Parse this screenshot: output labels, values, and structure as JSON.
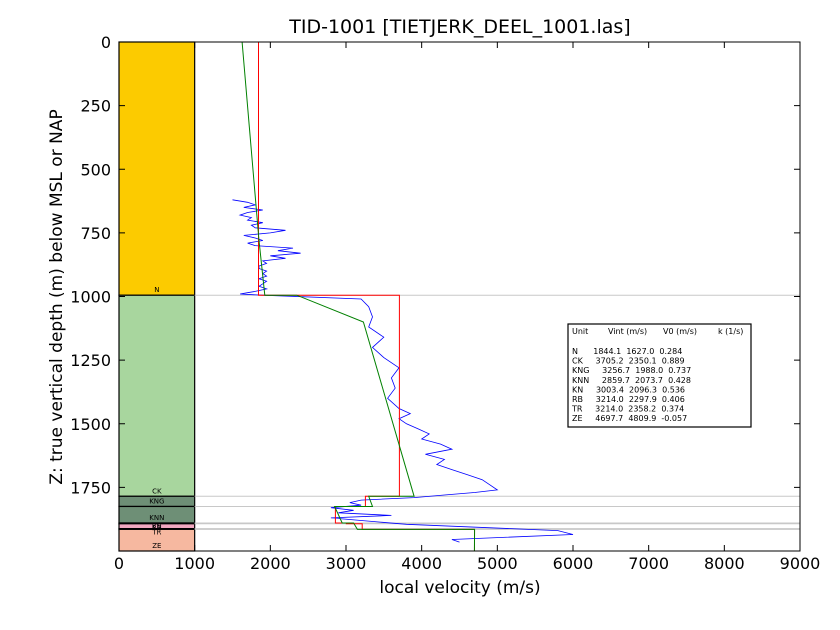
{
  "chart_data": {
    "type": "line",
    "title": "TID-1001 [TIETJERK_DEEL_1001.las]",
    "xlabel": "local velocity (m/s)",
    "ylabel": "Z: true vertical depth (m) below MSL or NAP",
    "xlim": [
      0,
      9000
    ],
    "ylim": [
      2000,
      0
    ],
    "x_ticks": [
      "0",
      "1000",
      "2000",
      "3000",
      "4000",
      "5000",
      "6000",
      "7000",
      "8000",
      "9000"
    ],
    "y_ticks": [
      "0",
      "250",
      "500",
      "750",
      "1000",
      "1250",
      "1500",
      "1750"
    ],
    "units": [
      {
        "name": "N",
        "top": 0,
        "bottom": 995,
        "color": "#fccb00",
        "vint": 1844.1,
        "v0": 1627.0,
        "k": 0.284
      },
      {
        "name": "CK",
        "top": 995,
        "bottom": 1785,
        "color": "#a8d69e",
        "vint": 3705.2,
        "v0": 2350.1,
        "k": 0.889
      },
      {
        "name": "KNG",
        "top": 1785,
        "bottom": 1825,
        "color": "#6e8f76",
        "vint": 3256.7,
        "v0": 1988.0,
        "k": 0.737
      },
      {
        "name": "KNN",
        "top": 1825,
        "bottom": 1890,
        "color": "#6e8f76",
        "vint": 2859.7,
        "v0": 2073.7,
        "k": 0.428
      },
      {
        "name": "KN",
        "top": 1890,
        "bottom": 1893,
        "color": "#6e8f76",
        "vint": 3003.4,
        "v0": 2096.3,
        "k": 0.536
      },
      {
        "name": "RB",
        "top": 1893,
        "bottom": 1912,
        "color": "#f1a8c0",
        "vint": 3214.0,
        "v0": 2297.9,
        "k": 0.406
      },
      {
        "name": "TR",
        "top": 1912,
        "bottom": 1915,
        "color": "#f1a8c0",
        "vint": 3214.0,
        "v0": 2358.2,
        "k": 0.374
      },
      {
        "name": "ZE",
        "top": 1915,
        "bottom": 2000,
        "color": "#f6b8a0",
        "vint": 4697.7,
        "v0": 4809.9,
        "k": -0.057
      }
    ],
    "legend": {
      "placement": "right",
      "header": [
        "Unit",
        "Vint (m/s)",
        "V0 (m/s)",
        "k (1/s)"
      ],
      "rows": [
        "N      1844.1  1627.0  0.284",
        "CK     3705.2  2350.1  0.889",
        "KNG     3256.7  1988.0  0.737",
        "KNN     2859.7  2073.7  0.428",
        "KN     3003.4  2096.3  0.536",
        "RB     3214.0  2297.9  0.406",
        "TR     3214.0  2358.2  0.374",
        "ZE     4697.7  4809.9  -0.057"
      ]
    },
    "series": [
      {
        "name": "",
        "color": "#0000ff",
        "style": "log",
        "x": [
          1500,
          1700,
          1800,
          1650,
          1900,
          1700,
          1600,
          1750,
          1700,
          1900,
          1750,
          1800,
          2200,
          2000,
          1650,
          1800,
          1900,
          1700,
          1800,
          2300,
          2100,
          2400,
          2000,
          2200,
          1900,
          1950,
          1850,
          1850,
          1950,
          1900,
          1950,
          1850,
          1950,
          1900,
          1850,
          1950,
          1800,
          1700,
          1600,
          1900,
          3200,
          3300,
          3350,
          3300,
          3500,
          3350,
          3500,
          3700,
          3600,
          3650,
          3550,
          3700,
          3850,
          3700,
          3800,
          3950,
          4100,
          4000,
          4250,
          4400,
          4050,
          4300,
          4200,
          4400,
          4600,
          4800,
          4900,
          5000,
          4700,
          4300,
          3900,
          3200,
          3050,
          3200,
          2800,
          3100,
          2900,
          3600,
          2800,
          3200,
          3800,
          5800,
          6000,
          4400,
          4500
        ],
        "y": [
          620,
          630,
          640,
          650,
          660,
          670,
          680,
          690,
          700,
          710,
          720,
          730,
          740,
          750,
          760,
          770,
          780,
          790,
          800,
          810,
          820,
          830,
          840,
          850,
          860,
          870,
          880,
          890,
          900,
          910,
          920,
          930,
          940,
          950,
          960,
          970,
          980,
          985,
          990,
          995,
          1010,
          1040,
          1080,
          1120,
          1160,
          1200,
          1240,
          1280,
          1320,
          1360,
          1400,
          1440,
          1460,
          1480,
          1500,
          1520,
          1540,
          1560,
          1580,
          1600,
          1620,
          1640,
          1660,
          1680,
          1700,
          1720,
          1740,
          1760,
          1770,
          1780,
          1790,
          1800,
          1810,
          1820,
          1830,
          1840,
          1850,
          1860,
          1870,
          1880,
          1895,
          1920,
          1935,
          1955,
          1965
        ]
      },
      {
        "name": "",
        "color": "#ff0000",
        "style": "step",
        "x": [
          1844.1,
          1844.1,
          3705.2,
          3705.2,
          3256.7,
          3256.7,
          2859.7,
          2859.7,
          3003.4,
          3003.4,
          3214.0,
          3214.0,
          4697.7,
          4697.7
        ],
        "y": [
          0,
          995,
          995,
          1785,
          1785,
          1825,
          1825,
          1890,
          1890,
          1893,
          1893,
          1915,
          1915,
          2000
        ]
      },
      {
        "name": "",
        "color": "#008000",
        "style": "linear",
        "x": [
          1627.0,
          1850,
          1927,
          2350,
          3230,
          3900,
          3300,
          3350,
          2850,
          2950,
          3100,
          3150,
          4700,
          4697
        ],
        "y": [
          0,
          780,
          995,
          995,
          1100,
          1785,
          1785,
          1825,
          1825,
          1890,
          1890,
          1915,
          1915,
          2000
        ]
      }
    ]
  }
}
